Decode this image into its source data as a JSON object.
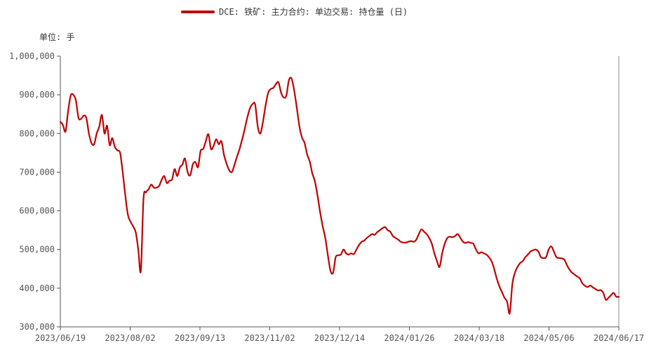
{
  "legend": {
    "label": "DCE: 铁矿: 主力合约: 单边交易: 持仓量 (日)"
  },
  "unit_label": "单位: 手",
  "chart_data": {
    "type": "line",
    "title": "",
    "xlabel": "",
    "ylabel": "",
    "ylim": [
      300000,
      1000000
    ],
    "grid": false,
    "legend_position": "top",
    "y_ticks": [
      {
        "value": 1000000,
        "label": "1,000,000"
      },
      {
        "value": 900000,
        "label": "900,000"
      },
      {
        "value": 800000,
        "label": "800,000"
      },
      {
        "value": 700000,
        "label": "700,000"
      },
      {
        "value": 600000,
        "label": "600,000"
      },
      {
        "value": 500000,
        "label": "500,000"
      },
      {
        "value": 400000,
        "label": "400,000"
      },
      {
        "value": 300000,
        "label": "300,000"
      }
    ],
    "x_ticks": [
      "2023/06/19",
      "2023/08/02",
      "2023/09/13",
      "2023/11/02",
      "2023/12/14",
      "2024/01/26",
      "2024/03/18",
      "2024/05/06",
      "2024/06/17"
    ],
    "series": [
      {
        "name": "DCE: 铁矿: 主力合约: 单边交易: 持仓量 (日)",
        "color": "#c00000",
        "values": [
          830000,
          822000,
          805000,
          858000,
          898000,
          900000,
          885000,
          840000,
          838000,
          846000,
          840000,
          800000,
          775000,
          772000,
          800000,
          818000,
          848000,
          800000,
          820000,
          770000,
          788000,
          765000,
          756000,
          750000,
          700000,
          640000,
          590000,
          572000,
          560000,
          545000,
          500000,
          445000,
          630000,
          648000,
          656000,
          668000,
          660000,
          660000,
          664000,
          680000,
          690000,
          672000,
          678000,
          681000,
          708000,
          690000,
          712000,
          720000,
          735000,
          700000,
          692000,
          720000,
          726000,
          713000,
          755000,
          760000,
          780000,
          798000,
          760000,
          768000,
          785000,
          772000,
          780000,
          745000,
          722000,
          705000,
          700000,
          718000,
          740000,
          760000,
          785000,
          812000,
          842000,
          865000,
          876000,
          875000,
          818000,
          800000,
          830000,
          872000,
          905000,
          915000,
          918000,
          928000,
          932000,
          905000,
          893000,
          898000,
          938000,
          942000,
          912000,
          868000,
          820000,
          790000,
          776000,
          746000,
          728000,
          697000,
          676000,
          640000,
          597000,
          560000,
          530000,
          485000,
          445000,
          440000,
          480000,
          485000,
          487000,
          500000,
          490000,
          487000,
          490000,
          488000,
          500000,
          512000,
          520000,
          523000,
          530000,
          535000,
          540000,
          538000,
          545000,
          550000,
          555000,
          558000,
          550000,
          546000,
          535000,
          530000,
          526000,
          520000,
          518000,
          518000,
          520000,
          522000,
          520000,
          525000,
          540000,
          552000,
          546000,
          540000,
          530000,
          515000,
          490000,
          470000,
          455000,
          490000,
          515000,
          530000,
          533000,
          532000,
          535000,
          540000,
          530000,
          520000,
          517000,
          519000,
          517000,
          515000,
          500000,
          490000,
          493000,
          490000,
          487000,
          480000,
          470000,
          450000,
          425000,
          405000,
          390000,
          375000,
          365000,
          335000,
          410000,
          440000,
          455000,
          465000,
          470000,
          480000,
          487000,
          495000,
          498000,
          500000,
          495000,
          480000,
          478000,
          480000,
          500000,
          508000,
          495000,
          480000,
          478000,
          477000,
          474000,
          460000,
          448000,
          440000,
          435000,
          430000,
          425000,
          412000,
          406000,
          403000,
          407000,
          402000,
          398000,
          394000,
          395000,
          388000,
          370000,
          375000,
          382000,
          388000,
          378000,
          378000
        ]
      }
    ]
  }
}
